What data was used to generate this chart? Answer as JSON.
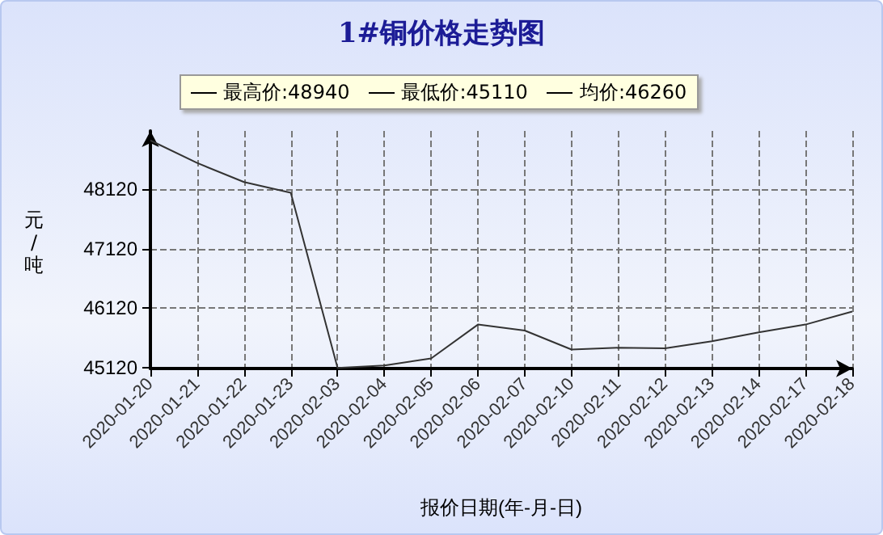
{
  "chart_data": {
    "type": "line",
    "title": "1#铜价格走势图",
    "xlabel": "报价日期(年-月-日)",
    "ylabel": "元/吨",
    "annotations": [
      "最高价:48940",
      "最低价:45110",
      "均价:46260"
    ],
    "categories": [
      "2020-01-20",
      "2020-01-21",
      "2020-01-22",
      "2020-01-23",
      "2020-02-03",
      "2020-02-04",
      "2020-02-05",
      "2020-02-06",
      "2020-02-07",
      "2020-02-10",
      "2020-02-11",
      "2020-02-12",
      "2020-02-13",
      "2020-02-14",
      "2020-02-17",
      "2020-02-18"
    ],
    "series": [
      {
        "color": "#333333",
        "values": [
          48940,
          48560,
          48240,
          48060,
          45110,
          45150,
          45270,
          45840,
          45740,
          45420,
          45450,
          45440,
          45560,
          45710,
          45840,
          46060
        ]
      }
    ],
    "ylim": [
      45100,
      49100
    ],
    "yticks": [
      45120,
      46120,
      47120,
      48120
    ],
    "grid": true,
    "marker": "none",
    "line_style": "solid"
  }
}
